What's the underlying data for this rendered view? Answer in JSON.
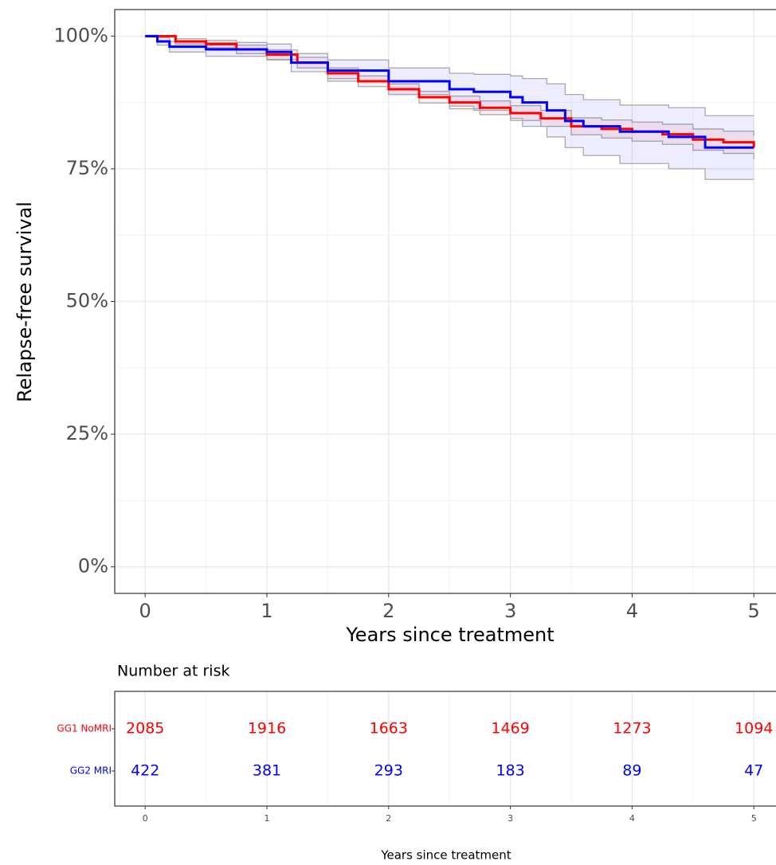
{
  "chart_data": [
    {
      "type": "step",
      "ylabel": "Relapse-free survival",
      "xlabel": "Years since treatment",
      "xlim": [
        -0.25,
        5.25
      ],
      "xticks": [
        0,
        1,
        2,
        3,
        4,
        5
      ],
      "ylim": [
        -5,
        105
      ],
      "yticks": [
        {
          "value": 0,
          "label": "0%"
        },
        {
          "value": 25,
          "label": "25%"
        },
        {
          "value": 50,
          "label": "50%"
        },
        {
          "value": 75,
          "label": "75%"
        },
        {
          "value": 100,
          "label": "100%"
        }
      ],
      "grid": true,
      "series": [
        {
          "color": "#ff0000",
          "x": [
            0,
            0.25,
            0.5,
            0.75,
            1,
            1.25,
            1.5,
            1.75,
            2,
            2.25,
            2.5,
            2.75,
            3,
            3.25,
            3.5,
            3.75,
            4,
            4.25,
            4.5,
            4.75,
            5
          ],
          "values": [
            100,
            99,
            98.5,
            97.5,
            96.5,
            95,
            93,
            91.5,
            90,
            88.5,
            87.5,
            86.5,
            85.5,
            84.5,
            83,
            82.5,
            82,
            81.5,
            80.5,
            80,
            79
          ],
          "lower": [
            100,
            98.5,
            97.8,
            96.7,
            95.6,
            94,
            92,
            90.5,
            89,
            87.4,
            86.3,
            85.2,
            84.1,
            83,
            81.4,
            80.8,
            80.2,
            79.6,
            78.5,
            77.9,
            76.8
          ],
          "upper": [
            100,
            99.5,
            99.2,
            98.3,
            97.4,
            96,
            94,
            92.5,
            91,
            89.6,
            88.7,
            87.8,
            86.9,
            86,
            84.6,
            84.2,
            83.8,
            83.4,
            82.5,
            82.1,
            81.2
          ]
        },
        {
          "color": "#0000ff",
          "x": [
            0,
            0.1,
            0.2,
            0.5,
            1,
            1.2,
            1.5,
            2,
            2.5,
            2.7,
            3,
            3.1,
            3.3,
            3.45,
            3.6,
            3.9,
            4.3,
            4.6,
            5
          ],
          "values": [
            100,
            99,
            98,
            97.5,
            97,
            95,
            93.5,
            91.5,
            90,
            89.5,
            88.5,
            87.5,
            86,
            84,
            83,
            82,
            81,
            79,
            79
          ],
          "lower": [
            100,
            98.3,
            97,
            96.2,
            95.5,
            93.3,
            91.5,
            89,
            86.8,
            86,
            84.5,
            83,
            81,
            79,
            77.5,
            76,
            75,
            73,
            73
          ],
          "upper": [
            100,
            99.7,
            99,
            98.8,
            98.5,
            96.7,
            95.5,
            94,
            93,
            92.8,
            92.5,
            92,
            91,
            89,
            88,
            87,
            86.5,
            85,
            85
          ]
        }
      ]
    },
    {
      "type": "risk_table",
      "title": "Number at risk",
      "xlabel": "Years since treatment",
      "xlim": [
        -0.25,
        5.25
      ],
      "xticks": [
        0,
        1,
        2,
        3,
        4,
        5
      ],
      "series": [
        {
          "name": "GG1 NoMRI",
          "color": "#ff0000",
          "values": [
            2085,
            1916,
            1663,
            1469,
            1273,
            1094
          ]
        },
        {
          "name": "GG2 MRI",
          "color": "#0000ff",
          "values": [
            422,
            381,
            293,
            183,
            89,
            47
          ]
        }
      ]
    }
  ]
}
